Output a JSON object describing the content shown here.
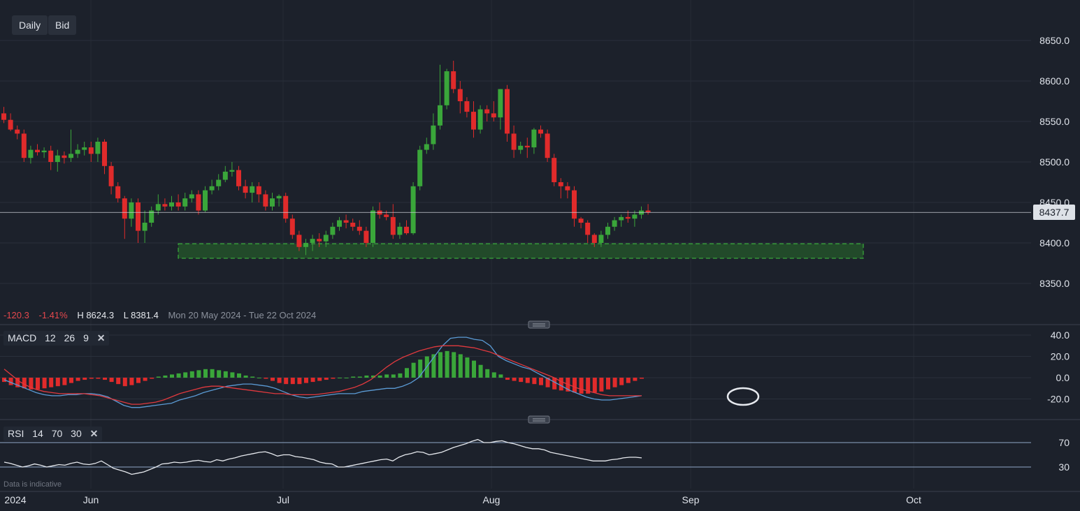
{
  "toolbar": {
    "timeframe": "Daily",
    "price_type": "Bid"
  },
  "summary": {
    "change": "-120.3",
    "change_pct": "-1.41%",
    "high": "H 8624.3",
    "low": "L 8381.4",
    "range": "Mon 20 May 2024 - Tue 22 Oct 2024"
  },
  "last_price_label": "8437.7",
  "disclaimer": "Data is indicative",
  "macd_label": {
    "name": "MACD",
    "fast": "12",
    "slow": "26",
    "signal": "9"
  },
  "rsi_label": {
    "name": "RSI",
    "period": "14",
    "upper": "70",
    "lower": "30"
  },
  "colors": {
    "up": "#3aa63a",
    "down": "#e02b2b",
    "macd": "#5b9bd5",
    "signal": "#e0393e",
    "support_zone": "#2a7d2a"
  },
  "icons": {
    "close": "close-icon",
    "drag_handle": "drag-handle-icon"
  },
  "chart_data": [
    {
      "type": "candlestick",
      "ylim": [
        8320,
        8680
      ],
      "yticks": [
        "8650.0",
        "8600.0",
        "8550.0",
        "8500.0",
        "8450.0",
        "8400.0",
        "8350.0"
      ],
      "last_price": 8437.7,
      "support_zone": [
        8381,
        8399
      ],
      "ohlc": [
        [
          8560,
          8568,
          8548,
          8552
        ],
        [
          8552,
          8560,
          8538,
          8540
        ],
        [
          8540,
          8545,
          8528,
          8535
        ],
        [
          8535,
          8540,
          8500,
          8505
        ],
        [
          8505,
          8520,
          8498,
          8515
        ],
        [
          8515,
          8522,
          8508,
          8512
        ],
        [
          8512,
          8518,
          8505,
          8514
        ],
        [
          8514,
          8520,
          8490,
          8500
        ],
        [
          8500,
          8515,
          8488,
          8508
        ],
        [
          8508,
          8513,
          8498,
          8505
        ],
        [
          8505,
          8540,
          8500,
          8510
        ],
        [
          8510,
          8522,
          8505,
          8515
        ],
        [
          8515,
          8525,
          8508,
          8518
        ],
        [
          8518,
          8525,
          8500,
          8510
        ],
        [
          8510,
          8530,
          8500,
          8525
        ],
        [
          8525,
          8528,
          8485,
          8495
        ],
        [
          8495,
          8500,
          8460,
          8470
        ],
        [
          8470,
          8475,
          8450,
          8455
        ],
        [
          8455,
          8458,
          8405,
          8430
        ],
        [
          8430,
          8455,
          8420,
          8450
        ],
        [
          8450,
          8455,
          8400,
          8415
        ],
        [
          8415,
          8440,
          8400,
          8425
        ],
        [
          8425,
          8445,
          8420,
          8440
        ],
        [
          8440,
          8460,
          8435,
          8448
        ],
        [
          8448,
          8455,
          8440,
          8445
        ],
        [
          8445,
          8458,
          8440,
          8450
        ],
        [
          8450,
          8460,
          8440,
          8445
        ],
        [
          8445,
          8462,
          8440,
          8455
        ],
        [
          8455,
          8465,
          8450,
          8460
        ],
        [
          8460,
          8465,
          8435,
          8440
        ],
        [
          8440,
          8470,
          8438,
          8465
        ],
        [
          8465,
          8478,
          8460,
          8470
        ],
        [
          8470,
          8485,
          8465,
          8478
        ],
        [
          8478,
          8495,
          8475,
          8488
        ],
        [
          8488,
          8500,
          8482,
          8490
        ],
        [
          8490,
          8495,
          8465,
          8470
        ],
        [
          8470,
          8478,
          8455,
          8462
        ],
        [
          8462,
          8475,
          8450,
          8470
        ],
        [
          8470,
          8475,
          8450,
          8460
        ],
        [
          8460,
          8465,
          8440,
          8445
        ],
        [
          8445,
          8462,
          8440,
          8455
        ],
        [
          8455,
          8460,
          8445,
          8458
        ],
        [
          8458,
          8462,
          8425,
          8430
        ],
        [
          8430,
          8435,
          8405,
          8410
        ],
        [
          8410,
          8415,
          8390,
          8395
        ],
        [
          8395,
          8405,
          8385,
          8400
        ],
        [
          8400,
          8410,
          8390,
          8405
        ],
        [
          8405,
          8412,
          8395,
          8402
        ],
        [
          8402,
          8415,
          8395,
          8410
        ],
        [
          8410,
          8425,
          8405,
          8420
        ],
        [
          8420,
          8432,
          8415,
          8428
        ],
        [
          8428,
          8435,
          8418,
          8425
        ],
        [
          8425,
          8430,
          8415,
          8420
        ],
        [
          8420,
          8428,
          8410,
          8415
        ],
        [
          8415,
          8420,
          8395,
          8400
        ],
        [
          8400,
          8445,
          8395,
          8440
        ],
        [
          8440,
          8450,
          8430,
          8435
        ],
        [
          8435,
          8440,
          8428,
          8432
        ],
        [
          8432,
          8448,
          8405,
          8410
        ],
        [
          8410,
          8425,
          8405,
          8420
        ],
        [
          8420,
          8428,
          8410,
          8412
        ],
        [
          8412,
          8475,
          8410,
          8470
        ],
        [
          8470,
          8520,
          8465,
          8515
        ],
        [
          8515,
          8530,
          8510,
          8522
        ],
        [
          8522,
          8560,
          8515,
          8545
        ],
        [
          8545,
          8620,
          8540,
          8570
        ],
        [
          8570,
          8615,
          8565,
          8612
        ],
        [
          8612,
          8625,
          8585,
          8590
        ],
        [
          8590,
          8600,
          8560,
          8575
        ],
        [
          8575,
          8580,
          8555,
          8562
        ],
        [
          8562,
          8575,
          8530,
          8540
        ],
        [
          8540,
          8570,
          8535,
          8565
        ],
        [
          8565,
          8570,
          8550,
          8560
        ],
        [
          8560,
          8575,
          8550,
          8555
        ],
        [
          8555,
          8590,
          8540,
          8590
        ],
        [
          8590,
          8595,
          8525,
          8535
        ],
        [
          8535,
          8545,
          8505,
          8515
        ],
        [
          8515,
          8525,
          8510,
          8520
        ],
        [
          8520,
          8530,
          8505,
          8518
        ],
        [
          8518,
          8542,
          8510,
          8540
        ],
        [
          8540,
          8545,
          8530,
          8535
        ],
        [
          8535,
          8540,
          8500,
          8505
        ],
        [
          8505,
          8510,
          8470,
          8475
        ],
        [
          8475,
          8480,
          8455,
          8470
        ],
        [
          8470,
          8475,
          8455,
          8465
        ],
        [
          8465,
          8470,
          8420,
          8430
        ],
        [
          8430,
          8432,
          8418,
          8425
        ],
        [
          8425,
          8428,
          8400,
          8410
        ],
        [
          8410,
          8412,
          8395,
          8400
        ],
        [
          8400,
          8415,
          8395,
          8410
        ],
        [
          8410,
          8425,
          8405,
          8420
        ],
        [
          8420,
          8432,
          8415,
          8428
        ],
        [
          8428,
          8435,
          8420,
          8432
        ],
        [
          8432,
          8440,
          8425,
          8430
        ],
        [
          8430,
          8440,
          8420,
          8435
        ],
        [
          8435,
          8445,
          8430,
          8440
        ],
        [
          8440,
          8448,
          8435,
          8438
        ]
      ]
    },
    {
      "type": "bar+line",
      "title": "MACD 12 26 9",
      "ylim": [
        -33,
        47
      ],
      "yticks": [
        "40.0",
        "20.0",
        "0.0",
        "-20.0"
      ],
      "histogram": [
        -4,
        -7,
        -9,
        -10,
        -11,
        -11,
        -10,
        -9,
        -8,
        -7,
        -5,
        -3,
        -2,
        -1,
        -1,
        -2,
        -4,
        -6,
        -8,
        -7,
        -5,
        -3,
        -1,
        1,
        2,
        3,
        4,
        5,
        6,
        7,
        8,
        8,
        7,
        6,
        5,
        4,
        2,
        1,
        0,
        -1,
        -3,
        -5,
        -6,
        -6,
        -6,
        -5,
        -4,
        -3,
        -2,
        -1,
        0,
        0,
        1,
        1,
        2,
        2,
        2,
        3,
        3,
        4,
        9,
        14,
        17,
        20,
        22,
        24,
        25,
        24,
        22,
        19,
        16,
        12,
        8,
        5,
        3,
        -2,
        -3,
        -4,
        -5,
        -6,
        -7,
        -9,
        -11,
        -12,
        -13,
        -14,
        -15,
        -15,
        -14,
        -13,
        -11,
        -9,
        -7,
        -5,
        -3,
        -1
      ],
      "series": [
        {
          "values": [
            -2,
            -5,
            -8,
            -11,
            -14,
            -16,
            -17,
            -17,
            -16,
            -16,
            -15,
            -15,
            -16,
            -18,
            -22,
            -26,
            -28,
            -28,
            -27,
            -26,
            -25,
            -24,
            -21,
            -19,
            -17,
            -14,
            -12,
            -10,
            -8,
            -7,
            -6,
            -6,
            -7,
            -8,
            -10,
            -13,
            -16,
            -18,
            -19,
            -18,
            -17,
            -16,
            -15,
            -15,
            -15,
            -13,
            -12,
            -11,
            -10,
            -10,
            -8,
            -5,
            0,
            10,
            20,
            30,
            37,
            38,
            38,
            36,
            35,
            30,
            20,
            16,
            13,
            10,
            8,
            4,
            0,
            -4,
            -8,
            -12,
            -15,
            -18,
            -20,
            -21,
            -21,
            -20,
            -19,
            -18,
            -17
          ]
        },
        {
          "values": [
            8,
            2,
            -4,
            -8,
            -11,
            -13,
            -14,
            -15,
            -15,
            -15,
            -15,
            -16,
            -17,
            -19,
            -21,
            -23,
            -25,
            -25,
            -24,
            -23,
            -21,
            -18,
            -15,
            -13,
            -11,
            -9,
            -8,
            -8,
            -9,
            -10,
            -11,
            -12,
            -13,
            -14,
            -15,
            -15,
            -16,
            -16,
            -16,
            -16,
            -15,
            -14,
            -13,
            -11,
            -9,
            -6,
            -2,
            4,
            10,
            15,
            19,
            22,
            25,
            27,
            29,
            30,
            30,
            30,
            29,
            28,
            26,
            24,
            21,
            18,
            15,
            12,
            9,
            6,
            3,
            0,
            -4,
            -7,
            -10,
            -12,
            -14,
            -16,
            -17,
            -17,
            -17,
            -17,
            -17
          ]
        }
      ]
    },
    {
      "type": "line",
      "title": "RSI 14 70 30",
      "ylim": [
        15,
        85
      ],
      "yticks": [
        "70",
        "30"
      ],
      "levels": [
        70,
        30
      ],
      "series": [
        {
          "values": [
            38,
            36,
            33,
            30,
            32,
            35,
            33,
            30,
            32,
            34,
            33,
            36,
            38,
            35,
            34,
            36,
            40,
            34,
            28,
            25,
            22,
            18,
            20,
            22,
            26,
            30,
            35,
            36,
            38,
            37,
            38,
            40,
            41,
            39,
            38,
            42,
            40,
            43,
            45,
            48,
            50,
            52,
            54,
            55,
            52,
            48,
            50,
            50,
            47,
            46,
            44,
            42,
            38,
            36,
            35,
            30,
            30,
            32,
            34,
            36,
            38,
            40,
            42,
            43,
            40,
            46,
            50,
            52,
            55,
            54,
            50,
            52,
            54,
            58,
            62,
            65,
            68,
            72,
            75,
            70,
            70,
            72,
            73,
            70,
            68,
            65,
            62,
            60,
            60,
            58,
            54,
            52,
            50,
            48,
            46,
            44,
            42,
            40,
            40,
            40,
            42,
            43,
            45,
            46,
            46,
            45
          ]
        }
      ]
    }
  ],
  "x_axis": {
    "labels": [
      "2024",
      "Jun",
      "Jul",
      "Aug",
      "Sep",
      "Oct"
    ]
  }
}
